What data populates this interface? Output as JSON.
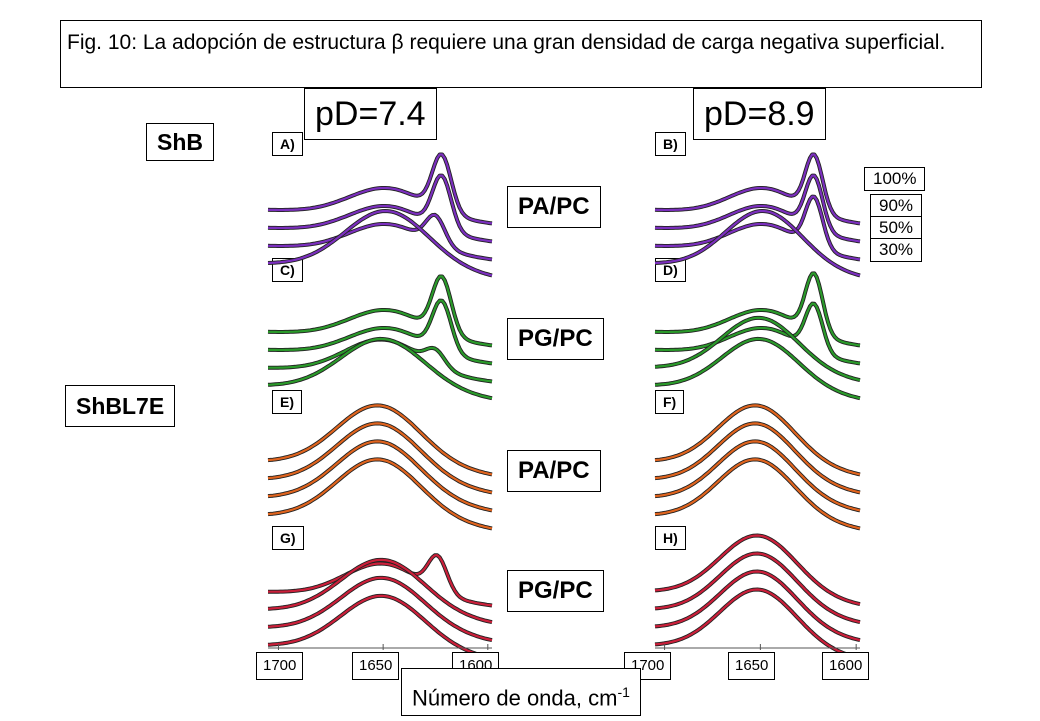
{
  "caption": "Fig. 10: La adopción de estructura β requiere una gran densidad de carga negativa superficial.",
  "conditions": [
    "pD=7.4",
    "pD=8.9"
  ],
  "groups": [
    "ShB",
    "ShBL7E"
  ],
  "lipids": [
    "PA/PC",
    "PG/PC",
    "PA/PC",
    "PG/PC"
  ],
  "concentrations": [
    "100%",
    "90%",
    "50%",
    "30%"
  ],
  "colors": {
    "ShB": "#7b2fbe",
    "ShB_PGPC": "#2a9a2a",
    "ShBL7E_PAPC": "#e0641e",
    "ShBL7E_PGPC": "#cc1f3a"
  },
  "chart_data": {
    "type": "line",
    "xlabel": "Número de onda, cm",
    "xlabel_sup": "-1",
    "x_ticks": [
      "1700",
      "1650",
      "1600"
    ],
    "x_range": [
      1705,
      1598
    ],
    "panels": [
      {
        "label": "A)",
        "group": "ShB",
        "lipid": "PA/PC",
        "condition": "pD=7.4",
        "color": "#7b2fbe",
        "series": [
          {
            "name": "100%",
            "components": [
              [
                1622,
                0.9,
                4.5
              ],
              [
                1648,
                0.45,
                18
              ]
            ]
          },
          {
            "name": "90%",
            "components": [
              [
                1622,
                0.85,
                4.5
              ],
              [
                1648,
                0.45,
                18
              ]
            ]
          },
          {
            "name": "50%",
            "components": [
              [
                1625,
                0.45,
                4.5
              ],
              [
                1648,
                0.45,
                18
              ]
            ]
          },
          {
            "name": "30%",
            "components": [
              [
                1648,
                0.95,
                20
              ]
            ]
          }
        ]
      },
      {
        "label": "B)",
        "group": "ShB",
        "lipid": "PA/PC",
        "condition": "pD=8.9",
        "color": "#7b2fbe",
        "series": [
          {
            "name": "100%",
            "components": [
              [
                1622,
                0.9,
                4.5
              ],
              [
                1648,
                0.45,
                18
              ]
            ]
          },
          {
            "name": "90%",
            "components": [
              [
                1622,
                0.85,
                4.5
              ],
              [
                1648,
                0.45,
                18
              ]
            ]
          },
          {
            "name": "50%",
            "components": [
              [
                1622,
                0.8,
                4.5
              ],
              [
                1648,
                0.45,
                18
              ]
            ]
          },
          {
            "name": "30%",
            "components": [
              [
                1648,
                0.95,
                20
              ]
            ]
          }
        ]
      },
      {
        "label": "C)",
        "group": "ShB",
        "lipid": "PG/PC",
        "condition": "pD=7.4",
        "color": "#2a9a2a",
        "series": [
          {
            "name": "100%",
            "components": [
              [
                1622,
                0.9,
                4.5
              ],
              [
                1648,
                0.45,
                18
              ]
            ]
          },
          {
            "name": "90%",
            "components": [
              [
                1622,
                0.8,
                4.5
              ],
              [
                1648,
                0.45,
                18
              ]
            ]
          },
          {
            "name": "50%",
            "components": [
              [
                1625,
                0.25,
                4.5
              ],
              [
                1650,
                0.55,
                18
              ]
            ]
          },
          {
            "name": "30%",
            "components": [
              [
                1650,
                0.85,
                20
              ]
            ]
          }
        ]
      },
      {
        "label": "D)",
        "group": "ShB",
        "lipid": "PG/PC",
        "condition": "pD=8.9",
        "color": "#2a9a2a",
        "series": [
          {
            "name": "100%",
            "components": [
              [
                1622,
                0.95,
                4.5
              ],
              [
                1648,
                0.45,
                18
              ]
            ]
          },
          {
            "name": "90%",
            "components": [
              [
                1622,
                0.75,
                4.5
              ],
              [
                1648,
                0.45,
                18
              ]
            ]
          },
          {
            "name": "50%",
            "components": [
              [
                1650,
                0.9,
                20
              ]
            ]
          },
          {
            "name": "30%",
            "components": [
              [
                1650,
                0.85,
                20
              ]
            ]
          }
        ]
      },
      {
        "label": "E)",
        "group": "ShBL7E",
        "lipid": "PA/PC",
        "condition": "pD=7.4",
        "color": "#e0641e",
        "series": [
          {
            "name": "100%",
            "components": [
              [
                1652,
                1.0,
                20
              ]
            ]
          },
          {
            "name": "90%",
            "components": [
              [
                1652,
                1.0,
                20
              ]
            ]
          },
          {
            "name": "50%",
            "components": [
              [
                1652,
                1.0,
                20
              ]
            ]
          },
          {
            "name": "30%",
            "components": [
              [
                1652,
                1.0,
                20
              ]
            ]
          }
        ]
      },
      {
        "label": "F)",
        "group": "ShBL7E",
        "lipid": "PA/PC",
        "condition": "pD=8.9",
        "color": "#e0641e",
        "series": [
          {
            "name": "100%",
            "components": [
              [
                1652,
                1.0,
                20
              ]
            ]
          },
          {
            "name": "90%",
            "components": [
              [
                1652,
                1.0,
                20
              ]
            ]
          },
          {
            "name": "50%",
            "components": [
              [
                1652,
                1.0,
                20
              ]
            ]
          },
          {
            "name": "30%",
            "components": [
              [
                1652,
                1.0,
                20
              ]
            ]
          }
        ]
      },
      {
        "label": "G)",
        "group": "ShBL7E",
        "lipid": "PG/PC",
        "condition": "pD=7.4",
        "color": "#cc1f3a",
        "series": [
          {
            "name": "100%",
            "components": [
              [
                1624,
                0.55,
                4.5
              ],
              [
                1650,
                0.55,
                18
              ]
            ]
          },
          {
            "name": "90%",
            "components": [
              [
                1650,
                0.9,
                20
              ]
            ]
          },
          {
            "name": "50%",
            "components": [
              [
                1650,
                0.9,
                20
              ]
            ]
          },
          {
            "name": "30%",
            "components": [
              [
                1650,
                0.9,
                20
              ]
            ]
          }
        ]
      },
      {
        "label": "H)",
        "group": "ShBL7E",
        "lipid": "PG/PC",
        "condition": "pD=8.9",
        "color": "#cc1f3a",
        "series": [
          {
            "name": "100%",
            "components": [
              [
                1651,
                1.0,
                20
              ]
            ]
          },
          {
            "name": "90%",
            "components": [
              [
                1651,
                1.0,
                20
              ]
            ]
          },
          {
            "name": "50%",
            "components": [
              [
                1651,
                1.0,
                20
              ]
            ]
          },
          {
            "name": "30%",
            "components": [
              [
                1651,
                1.0,
                20
              ]
            ]
          }
        ]
      }
    ]
  }
}
